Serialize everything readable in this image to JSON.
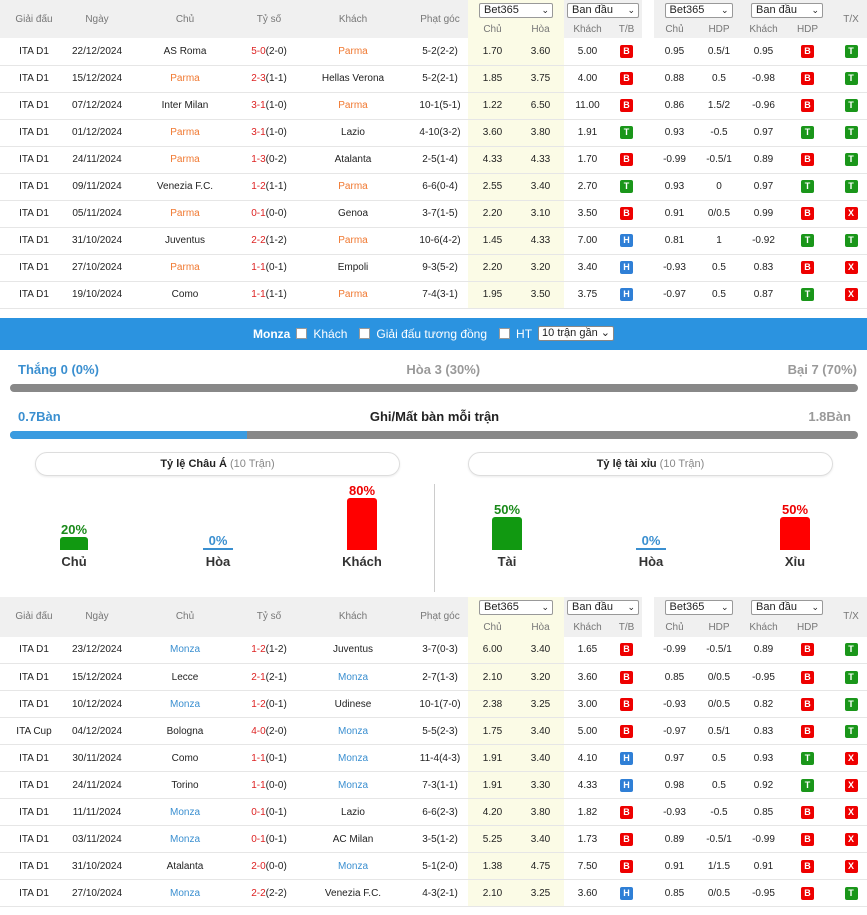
{
  "headers": {
    "league": "Giải đấu",
    "date": "Ngày",
    "home": "Chủ",
    "score": "Tỷ số",
    "away": "Khách",
    "corner": "Phạt góc",
    "bookmaker": "Bet365",
    "initial": "Ban đầu",
    "chu": "Chủ",
    "hoa": "Hòa",
    "khach": "Khách",
    "tb": "T/B",
    "hdp": "HDP",
    "tx": "T/X"
  },
  "table1": [
    {
      "league": "ITA D1",
      "date": "22/12/2024",
      "home": "AS Roma",
      "score": "5-0",
      "ht": "(2-0)",
      "away": "Parma",
      "corner": "5-2(2-2)",
      "o1": "1.70",
      "o2": "3.60",
      "o3": "5.00",
      "tb": "B",
      "a1": "0.95",
      "a2": "0.5/1",
      "a3": "0.95",
      "hdp": "B",
      "tx": "T",
      "hl": "away"
    },
    {
      "league": "ITA D1",
      "date": "15/12/2024",
      "home": "Parma",
      "score": "2-3",
      "ht": "(1-1)",
      "away": "Hellas Verona",
      "corner": "5-2(2-1)",
      "o1": "1.85",
      "o2": "3.75",
      "o3": "4.00",
      "tb": "B",
      "a1": "0.88",
      "a2": "0.5",
      "a3": "-0.98",
      "hdp": "B",
      "tx": "T",
      "hl": "home"
    },
    {
      "league": "ITA D1",
      "date": "07/12/2024",
      "home": "Inter Milan",
      "score": "3-1",
      "ht": "(1-0)",
      "away": "Parma",
      "corner": "10-1(5-1)",
      "o1": "1.22",
      "o2": "6.50",
      "o3": "11.00",
      "tb": "B",
      "a1": "0.86",
      "a2": "1.5/2",
      "a3": "-0.96",
      "hdp": "B",
      "tx": "T",
      "hl": "away"
    },
    {
      "league": "ITA D1",
      "date": "01/12/2024",
      "home": "Parma",
      "score": "3-1",
      "ht": "(1-0)",
      "away": "Lazio",
      "corner": "4-10(3-2)",
      "o1": "3.60",
      "o2": "3.80",
      "o3": "1.91",
      "tb": "T",
      "a1": "0.93",
      "a2": "-0.5",
      "a3": "0.97",
      "hdp": "T",
      "tx": "T",
      "hl": "home"
    },
    {
      "league": "ITA D1",
      "date": "24/11/2024",
      "home": "Parma",
      "score": "1-3",
      "ht": "(0-2)",
      "away": "Atalanta",
      "corner": "2-5(1-4)",
      "o1": "4.33",
      "o2": "4.33",
      "o3": "1.70",
      "tb": "B",
      "a1": "-0.99",
      "a2": "-0.5/1",
      "a3": "0.89",
      "hdp": "B",
      "tx": "T",
      "hl": "home"
    },
    {
      "league": "ITA D1",
      "date": "09/11/2024",
      "home": "Venezia F.C.",
      "score": "1-2",
      "ht": "(1-1)",
      "away": "Parma",
      "corner": "6-6(0-4)",
      "o1": "2.55",
      "o2": "3.40",
      "o3": "2.70",
      "tb": "T",
      "a1": "0.93",
      "a2": "0",
      "a3": "0.97",
      "hdp": "T",
      "tx": "T",
      "hl": "away"
    },
    {
      "league": "ITA D1",
      "date": "05/11/2024",
      "home": "Parma",
      "score": "0-1",
      "ht": "(0-0)",
      "away": "Genoa",
      "corner": "3-7(1-5)",
      "o1": "2.20",
      "o2": "3.10",
      "o3": "3.50",
      "tb": "B",
      "a1": "0.91",
      "a2": "0/0.5",
      "a3": "0.99",
      "hdp": "B",
      "tx": "X",
      "hl": "home"
    },
    {
      "league": "ITA D1",
      "date": "31/10/2024",
      "home": "Juventus",
      "score": "2-2",
      "ht": "(1-2)",
      "away": "Parma",
      "corner": "10-6(4-2)",
      "o1": "1.45",
      "o2": "4.33",
      "o3": "7.00",
      "tb": "H",
      "a1": "0.81",
      "a2": "1",
      "a3": "-0.92",
      "hdp": "T",
      "tx": "T",
      "hl": "away"
    },
    {
      "league": "ITA D1",
      "date": "27/10/2024",
      "home": "Parma",
      "score": "1-1",
      "ht": "(0-1)",
      "away": "Empoli",
      "corner": "9-3(5-2)",
      "o1": "2.20",
      "o2": "3.20",
      "o3": "3.40",
      "tb": "H",
      "a1": "-0.93",
      "a2": "0.5",
      "a3": "0.83",
      "hdp": "B",
      "tx": "X",
      "hl": "home"
    },
    {
      "league": "ITA D1",
      "date": "19/10/2024",
      "home": "Como",
      "score": "1-1",
      "ht": "(1-1)",
      "away": "Parma",
      "corner": "7-4(3-1)",
      "o1": "1.95",
      "o2": "3.50",
      "o3": "3.75",
      "tb": "H",
      "a1": "-0.97",
      "a2": "0.5",
      "a3": "0.87",
      "hdp": "T",
      "tx": "X",
      "hl": "away"
    }
  ],
  "filter": {
    "team": "Monza",
    "away_label": "Khách",
    "same_league_label": "Giải đấu tương đồng",
    "ht_label": "HT",
    "recent_select": "10 trận gần"
  },
  "summary": {
    "win": "Thắng 0 (0%)",
    "draw": "Hòa 3 (30%)",
    "loss": "Bại 7 (70%)",
    "win_fraction": 0.0,
    "goals_for": "0.7Bàn",
    "goals_title": "Ghi/Mất bàn mỗi trận",
    "goals_against": "1.8Bàn",
    "goals_fraction": 0.28
  },
  "asian": {
    "title": "Tỷ lệ Châu Á",
    "count": "(10 Trận)",
    "home_pct": "20%",
    "draw_pct": "0%",
    "away_pct": "80%",
    "home_label": "Chủ",
    "draw_label": "Hòa",
    "away_label": "Khách",
    "home_value": 20,
    "away_value": 80
  },
  "overunder": {
    "title": "Tỷ lệ tài xỉu",
    "count": "(10 Trận)",
    "over_pct": "50%",
    "draw_pct": "0%",
    "under_pct": "50%",
    "over_label": "Tài",
    "draw_label": "Hòa",
    "under_label": "Xỉu",
    "over_value": 50,
    "under_value": 50
  },
  "table2": [
    {
      "league": "ITA D1",
      "date": "23/12/2024",
      "home": "Monza",
      "score": "1-2",
      "ht": "(1-2)",
      "away": "Juventus",
      "corner": "3-7(0-3)",
      "o1": "6.00",
      "o2": "3.40",
      "o3": "1.65",
      "tb": "B",
      "a1": "-0.99",
      "a2": "-0.5/1",
      "a3": "0.89",
      "hdp": "B",
      "tx": "T",
      "hl": "home"
    },
    {
      "league": "ITA D1",
      "date": "15/12/2024",
      "home": "Lecce",
      "score": "2-1",
      "ht": "(2-1)",
      "away": "Monza",
      "corner": "2-7(1-3)",
      "o1": "2.10",
      "o2": "3.20",
      "o3": "3.60",
      "tb": "B",
      "a1": "0.85",
      "a2": "0/0.5",
      "a3": "-0.95",
      "hdp": "B",
      "tx": "T",
      "hl": "away"
    },
    {
      "league": "ITA D1",
      "date": "10/12/2024",
      "home": "Monza",
      "score": "1-2",
      "ht": "(0-1)",
      "away": "Udinese",
      "corner": "10-1(7-0)",
      "o1": "2.38",
      "o2": "3.25",
      "o3": "3.00",
      "tb": "B",
      "a1": "-0.93",
      "a2": "0/0.5",
      "a3": "0.82",
      "hdp": "B",
      "tx": "T",
      "hl": "home"
    },
    {
      "league": "ITA Cup",
      "date": "04/12/2024",
      "home": "Bologna",
      "score": "4-0",
      "ht": "(2-0)",
      "away": "Monza",
      "corner": "5-5(2-3)",
      "o1": "1.75",
      "o2": "3.40",
      "o3": "5.00",
      "tb": "B",
      "a1": "-0.97",
      "a2": "0.5/1",
      "a3": "0.83",
      "hdp": "B",
      "tx": "T",
      "hl": "away"
    },
    {
      "league": "ITA D1",
      "date": "30/11/2024",
      "home": "Como",
      "score": "1-1",
      "ht": "(0-1)",
      "away": "Monza",
      "corner": "11-4(4-3)",
      "o1": "1.91",
      "o2": "3.40",
      "o3": "4.10",
      "tb": "H",
      "a1": "0.97",
      "a2": "0.5",
      "a3": "0.93",
      "hdp": "T",
      "tx": "X",
      "hl": "away"
    },
    {
      "league": "ITA D1",
      "date": "24/11/2024",
      "home": "Torino",
      "score": "1-1",
      "ht": "(0-0)",
      "away": "Monza",
      "corner": "7-3(1-1)",
      "o1": "1.91",
      "o2": "3.30",
      "o3": "4.33",
      "tb": "H",
      "a1": "0.98",
      "a2": "0.5",
      "a3": "0.92",
      "hdp": "T",
      "tx": "X",
      "hl": "away"
    },
    {
      "league": "ITA D1",
      "date": "11/11/2024",
      "home": "Monza",
      "score": "0-1",
      "ht": "(0-1)",
      "away": "Lazio",
      "corner": "6-6(2-3)",
      "o1": "4.20",
      "o2": "3.80",
      "o3": "1.82",
      "tb": "B",
      "a1": "-0.93",
      "a2": "-0.5",
      "a3": "0.85",
      "hdp": "B",
      "tx": "X",
      "hl": "home"
    },
    {
      "league": "ITA D1",
      "date": "03/11/2024",
      "home": "Monza",
      "score": "0-1",
      "ht": "(0-1)",
      "away": "AC Milan",
      "corner": "3-5(1-2)",
      "o1": "5.25",
      "o2": "3.40",
      "o3": "1.73",
      "tb": "B",
      "a1": "0.89",
      "a2": "-0.5/1",
      "a3": "-0.99",
      "hdp": "B",
      "tx": "X",
      "hl": "home"
    },
    {
      "league": "ITA D1",
      "date": "31/10/2024",
      "home": "Atalanta",
      "score": "2-0",
      "ht": "(0-0)",
      "away": "Monza",
      "corner": "5-1(2-0)",
      "o1": "1.38",
      "o2": "4.75",
      "o3": "7.50",
      "tb": "B",
      "a1": "0.91",
      "a2": "1/1.5",
      "a3": "0.91",
      "hdp": "B",
      "tx": "X",
      "hl": "away"
    },
    {
      "league": "ITA D1",
      "date": "27/10/2024",
      "home": "Monza",
      "score": "2-2",
      "ht": "(2-2)",
      "away": "Venezia F.C.",
      "corner": "4-3(2-1)",
      "o1": "2.10",
      "o2": "3.25",
      "o3": "3.60",
      "tb": "H",
      "a1": "0.85",
      "a2": "0/0.5",
      "a3": "-0.95",
      "hdp": "B",
      "tx": "T",
      "hl": "home"
    }
  ]
}
